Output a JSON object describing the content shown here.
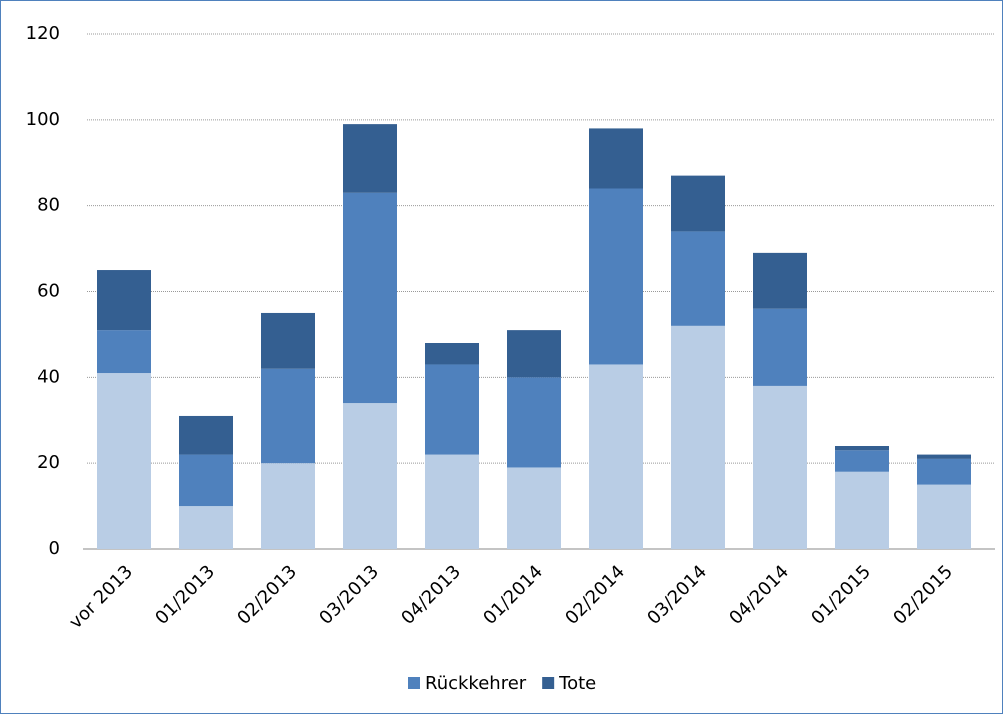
{
  "chart_data": {
    "type": "stacked_bar",
    "categories": [
      "vor 2013",
      "01/2013",
      "02/2013",
      "03/2013",
      "04/2013",
      "01/2014",
      "02/2014",
      "03/2014",
      "04/2014",
      "01/2015",
      "02/2015"
    ],
    "series": [
      {
        "color": "#b9cde5",
        "values": [
          41,
          10,
          20,
          34,
          22,
          19,
          43,
          52,
          38,
          18,
          15
        ]
      },
      {
        "name": "Rückkehrer",
        "color": "#4f81bd",
        "values": [
          10,
          12,
          22,
          49,
          21,
          21,
          41,
          22,
          18,
          5,
          6
        ]
      },
      {
        "name": "Tote",
        "color": "#345f91",
        "values": [
          14,
          9,
          13,
          16,
          5,
          11,
          14,
          13,
          13,
          1,
          1
        ]
      }
    ],
    "ylim": [
      0,
      120
    ],
    "yticks": [
      0,
      20,
      40,
      60,
      80,
      100,
      120
    ],
    "grid": true
  }
}
